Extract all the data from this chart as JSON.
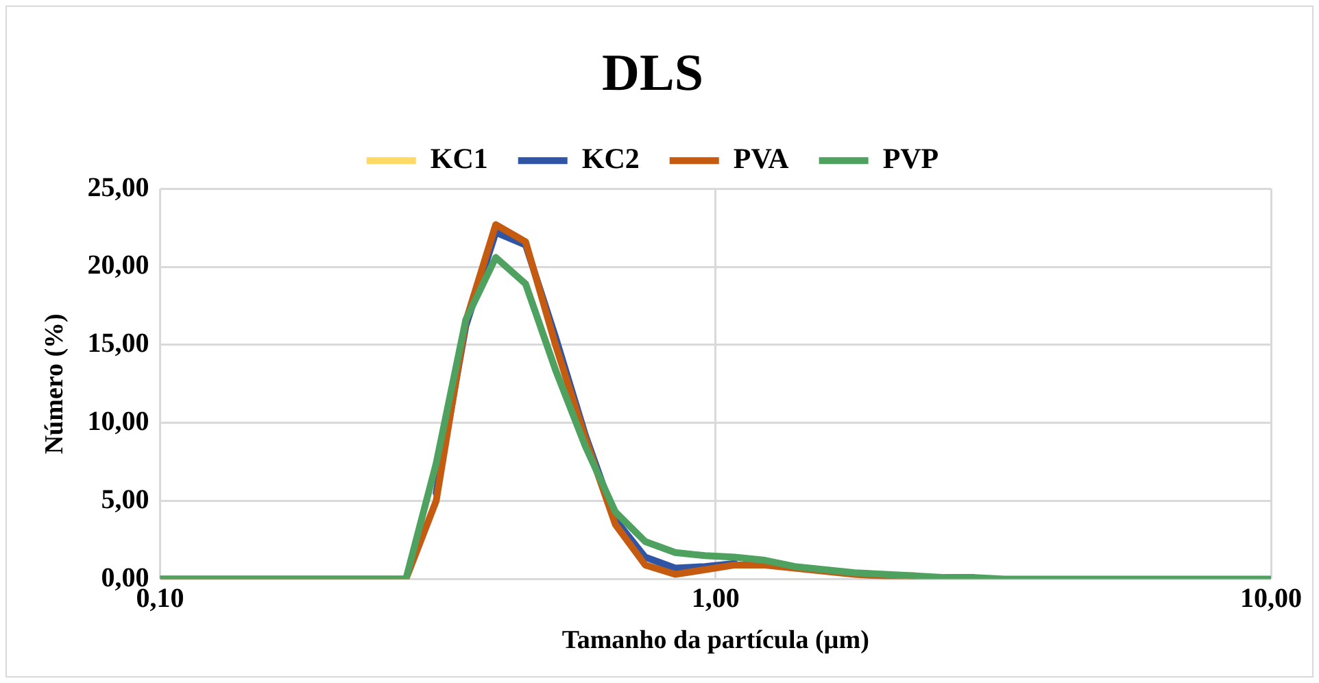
{
  "chart_data": {
    "type": "line",
    "title": "DLS",
    "xlabel": "Tamanho da partícula (µm)",
    "ylabel": "Número (%)",
    "x": [
      0.1,
      0.277,
      0.314,
      0.355,
      0.402,
      0.455,
      0.515,
      0.583,
      0.66,
      0.747,
      0.846,
      0.957,
      1.083,
      1.227,
      1.389,
      1.572,
      1.78,
      2.015,
      2.281,
      2.582,
      2.924,
      3.31,
      10
    ],
    "series": [
      {
        "name": "KC1",
        "color": "#ffd966",
        "values": [
          null,
          null,
          null,
          null,
          null,
          null,
          null,
          null,
          null,
          null,
          null,
          null,
          null,
          null,
          null,
          null,
          null,
          null,
          null,
          null,
          null,
          null,
          null
        ]
      },
      {
        "name": "KC2",
        "color": "#2f55a4",
        "values": [
          null,
          null,
          5.5,
          16.2,
          22.2,
          21.4,
          15.5,
          9.2,
          3.8,
          1.4,
          0.7,
          0.8,
          1.0,
          null,
          null,
          null,
          null,
          null,
          null,
          null,
          null,
          null,
          null
        ]
      },
      {
        "name": "PVA",
        "color": "#c55a11",
        "values": [
          0,
          0,
          5.0,
          16.5,
          22.7,
          21.6,
          15.0,
          9.0,
          3.5,
          0.9,
          0.3,
          0.6,
          0.9,
          0.9,
          0.7,
          0.5,
          0.3,
          0.2,
          0.2,
          null,
          null,
          null,
          null
        ]
      },
      {
        "name": "PVP",
        "color": "#4ea15f",
        "values": [
          0,
          0,
          7.4,
          16.6,
          20.6,
          18.9,
          13.4,
          8.5,
          4.3,
          2.4,
          1.7,
          1.5,
          1.4,
          1.2,
          0.8,
          0.6,
          0.4,
          0.3,
          0.2,
          0.1,
          0.1,
          0,
          0
        ]
      }
    ],
    "log": "x",
    "xlim": [
      0.1,
      10
    ],
    "xticks": [
      {
        "value": 0.1,
        "label": "0,10"
      },
      {
        "value": 1,
        "label": "1,00"
      },
      {
        "value": 10,
        "label": "10,00"
      }
    ],
    "ylim": [
      0,
      25
    ],
    "yticks": [
      {
        "value": 0,
        "label": "0,00"
      },
      {
        "value": 5,
        "label": "5,00"
      },
      {
        "value": 10,
        "label": "10,00"
      },
      {
        "value": 15,
        "label": "15,00"
      },
      {
        "value": 20,
        "label": "20,00"
      },
      {
        "value": 25,
        "label": "25,00"
      }
    ],
    "grid": true,
    "legend": "top",
    "marker": "none",
    "line_style": "solid"
  }
}
